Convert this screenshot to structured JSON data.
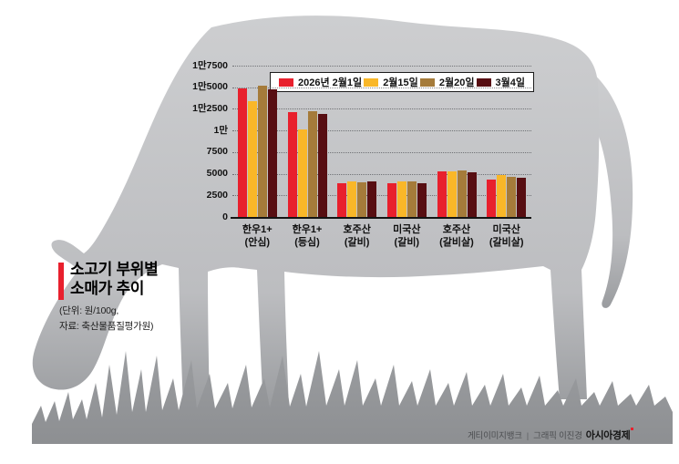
{
  "infographic": {
    "title_line1": "소고기 부위별",
    "title_line2": "소매가 추이",
    "unit_note": "(단위: 원/100g,",
    "source_note": "자료: 축산물품질평가원)",
    "credits": {
      "image_source": "게티이미지뱅크",
      "divider": "|",
      "graphic_credit": "그래픽 이진경",
      "brand": "아시아경제"
    }
  },
  "chart_data": {
    "type": "bar",
    "title": "소고기 부위별 소매가 추이",
    "unit": "원/100g",
    "source": "축산물품질평가원",
    "legend_position": "top",
    "grid": true,
    "categories": [
      {
        "line1": "한우1+",
        "line2": "(안심)"
      },
      {
        "line1": "한우1+",
        "line2": "(등심)"
      },
      {
        "line1": "호주산",
        "line2": "(갈비)"
      },
      {
        "line1": "미국산",
        "line2": "(갈비)"
      },
      {
        "line1": "호주산",
        "line2": "(갈비살)"
      },
      {
        "line1": "미국산",
        "line2": "(갈비살)"
      }
    ],
    "series": [
      {
        "name": "2026년 2월1일",
        "color": "#e8202d",
        "values": [
          14900,
          12100,
          3900,
          3950,
          5250,
          4300
        ]
      },
      {
        "name": "2월15일",
        "color": "#f9b728",
        "values": [
          13350,
          10100,
          4100,
          4150,
          5300,
          4850
        ]
      },
      {
        "name": "2월20일",
        "color": "#a57b3a",
        "values": [
          15150,
          12250,
          4050,
          4100,
          5350,
          4600
        ]
      },
      {
        "name": "3월4일",
        "color": "#570e12",
        "values": [
          14800,
          11900,
          4150,
          3900,
          5200,
          4500
        ]
      }
    ],
    "y_axis": {
      "min": 0,
      "max": 17500,
      "ticks": [
        {
          "value": 0,
          "label": "0"
        },
        {
          "value": 2500,
          "label": "2500"
        },
        {
          "value": 5000,
          "label": "5000"
        },
        {
          "value": 7500,
          "label": "7500"
        },
        {
          "value": 10000,
          "label": "1만"
        },
        {
          "value": 12500,
          "label": "1만2500"
        },
        {
          "value": 15000,
          "label": "1만5000"
        },
        {
          "value": 17500,
          "label": "1만7500"
        }
      ]
    }
  },
  "colors": {
    "accent_red": "#e8202d",
    "cow_gray_light": "#cdced0",
    "cow_gray_dark": "#97999c",
    "grass_gray": "#8f9194"
  }
}
